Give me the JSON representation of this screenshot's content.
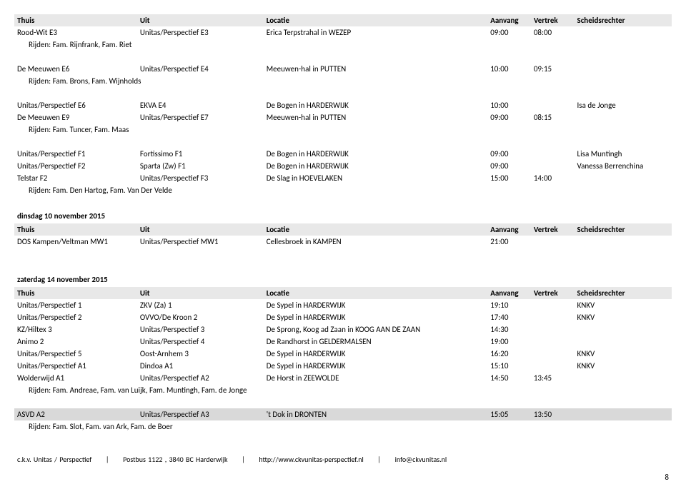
{
  "headers": {
    "thuis": "Thuis",
    "uit": "Uit",
    "locatie": "Locatie",
    "aanvang": "Aanvang",
    "vertrek": "Vertrek",
    "scheids": "Scheidsrechter"
  },
  "group1": {
    "rows": [
      [
        "Rood-Wit E3",
        "Unitas/Perspectief E3",
        "Erica Terpstrahal in WEZEP",
        "09:00",
        "08:00",
        ""
      ]
    ],
    "rijden": "Rijden: Fam. Rijnfrank, Fam. Riet"
  },
  "group2": {
    "rows": [
      [
        "De Meeuwen E6",
        "Unitas/Perspectief E4",
        "Meeuwen-hal in PUTTEN",
        "10:00",
        "09:15",
        ""
      ]
    ],
    "rijden": "Rijden: Fam. Brons, Fam. Wijnholds"
  },
  "group3": {
    "rows": [
      [
        "Unitas/Perspectief E6",
        "EKVA E4",
        "De Bogen in HARDERWIJK",
        "10:00",
        "",
        "Isa de Jonge"
      ],
      [
        "De Meeuwen E9",
        "Unitas/Perspectief E7",
        "Meeuwen-hal in PUTTEN",
        "09:00",
        "08:15",
        ""
      ]
    ],
    "rijden": "Rijden: Fam. Tuncer, Fam. Maas"
  },
  "group4": {
    "rows": [
      [
        "Unitas/Perspectief F1",
        "Fortissimo F1",
        "De Bogen in HARDERWIJK",
        "09:00",
        "",
        "Lisa Muntingh"
      ],
      [
        "Unitas/Perspectief F2",
        "Sparta (Zw) F1",
        "De Bogen in HARDERWIJK",
        "09:00",
        "",
        "Vanessa Berrenchina"
      ],
      [
        "Telstar F2",
        "Unitas/Perspectief F3",
        "De Slag in HOEVELAKEN",
        "15:00",
        "14:00",
        ""
      ]
    ],
    "rijden": "Rijden: Fam. Den Hartog, Fam. Van Der Velde"
  },
  "section2": {
    "title": "dinsdag 10 november 2015",
    "rows": [
      [
        "DOS Kampen/Veltman MW1",
        "Unitas/Perspectief MW1",
        "Cellesbroek in KAMPEN",
        "21:00",
        "",
        ""
      ]
    ]
  },
  "section3": {
    "title": "zaterdag 14 november 2015",
    "rows": [
      [
        "Unitas/Perspectief 1",
        "ZKV (Za) 1",
        "De Sypel in HARDERWIJK",
        "19:10",
        "",
        "KNKV"
      ],
      [
        "Unitas/Perspectief 2",
        "OVVO/De Kroon 2",
        "De Sypel in HARDERWIJK",
        "17:40",
        "",
        "KNKV"
      ],
      [
        "KZ/Hiltex 3",
        "Unitas/Perspectief 3",
        "De Sprong, Koog ad Zaan in KOOG AAN DE ZAAN",
        "14:30",
        "",
        ""
      ],
      [
        "Animo 2",
        "Unitas/Perspectief 4",
        "De Randhorst in GELDERMALSEN",
        "19:00",
        "",
        ""
      ],
      [
        "Unitas/Perspectief 5",
        "Oost-Arnhem 3",
        "De Sypel in HARDERWIJK",
        "16:20",
        "",
        "KNKV"
      ],
      [
        "Unitas/Perspectief A1",
        "Dindoa A1",
        "De Sypel in HARDERWIJK",
        "15:10",
        "",
        "KNKV"
      ],
      [
        "Wolderwijd A1",
        "Unitas/Perspectief A2",
        "De Horst in ZEEWOLDE",
        "14:50",
        "13:45",
        ""
      ]
    ],
    "rijden": "Rijden: Fam. Andreae, Fam. van Luijk, Fam. Muntingh, Fam. de Jonge"
  },
  "group5": {
    "rows": [
      [
        "ASVD A2",
        "Unitas/Perspectief A3",
        "'t Dok in DRONTEN",
        "15:05",
        "13:50",
        ""
      ]
    ],
    "rijden": "Rijden: Fam. Slot, Fam. van Ark, Fam. de Boer"
  },
  "footer": {
    "org": "c.k.v. Unitas / Perspectief",
    "addr": "Postbus 1122 , 3840 BC  Harderwijk",
    "url": "http://www.ckvunitas-perspectief.nl",
    "email": "info@ckvunitas.nl",
    "sep": "|"
  },
  "pagenum": "8"
}
